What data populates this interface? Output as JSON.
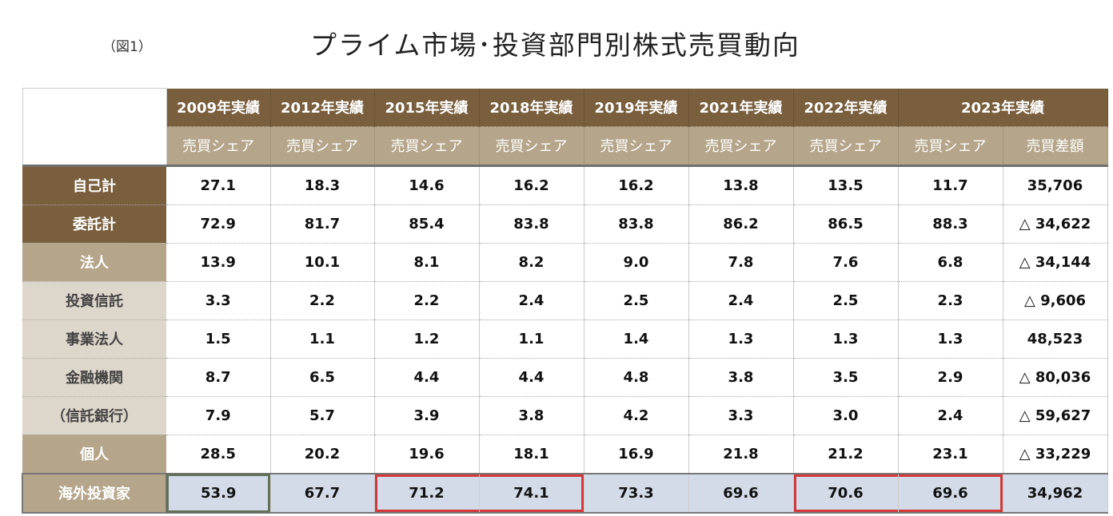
{
  "figure_label": "（図1）",
  "title": "プライム市場･投資部門別株式売買動向",
  "colors": {
    "header_dark": "#7a5f3e",
    "header_tan": "#b5a58a",
    "label_light": "#ddd6ca",
    "highlight_row": "#d3dbe9",
    "red_box": "#d23a3a",
    "green_box": "#62705a"
  },
  "columns": [
    "2009年実績",
    "2012年実績",
    "2015年実績",
    "2018年実績",
    "2019年実績",
    "2021年実績",
    "2022年実績",
    "2023年実績"
  ],
  "subheaders": [
    "売買シェア",
    "売買シェア",
    "売買シェア",
    "売買シェア",
    "売買シェア",
    "売買シェア",
    "売買シェア",
    "売買シェア",
    "売買差額"
  ],
  "rows": [
    {
      "label": "自己計",
      "values": [
        "27.1",
        "18.3",
        "14.6",
        "16.2",
        "16.2",
        "13.8",
        "13.5",
        "11.7",
        "35,706"
      ]
    },
    {
      "label": "委託計",
      "values": [
        "72.9",
        "81.7",
        "85.4",
        "83.8",
        "83.8",
        "86.2",
        "86.5",
        "88.3",
        "△ 34,622"
      ]
    },
    {
      "label": "法人",
      "values": [
        "13.9",
        "10.1",
        "8.1",
        "8.2",
        "9.0",
        "7.8",
        "7.6",
        "6.8",
        "△ 34,144"
      ]
    },
    {
      "label": "投資信託",
      "values": [
        "3.3",
        "2.2",
        "2.2",
        "2.4",
        "2.5",
        "2.4",
        "2.5",
        "2.3",
        "△ 9,606"
      ]
    },
    {
      "label": "事業法人",
      "values": [
        "1.5",
        "1.1",
        "1.2",
        "1.1",
        "1.4",
        "1.3",
        "1.3",
        "1.3",
        "48,523"
      ]
    },
    {
      "label": "金融機関",
      "values": [
        "8.7",
        "6.5",
        "4.4",
        "4.4",
        "4.8",
        "3.8",
        "3.5",
        "2.9",
        "△ 80,036"
      ]
    },
    {
      "label": "（信託銀行）",
      "values": [
        "7.9",
        "5.7",
        "3.9",
        "3.8",
        "4.2",
        "3.3",
        "3.0",
        "2.4",
        "△ 59,627"
      ]
    },
    {
      "label": "個人",
      "values": [
        "28.5",
        "20.2",
        "19.6",
        "18.1",
        "16.9",
        "21.8",
        "21.2",
        "23.1",
        "△ 33,229"
      ]
    },
    {
      "label": "海外投資家",
      "values": [
        "53.9",
        "67.7",
        "71.2",
        "74.1",
        "73.3",
        "69.6",
        "70.6",
        "69.6",
        "34,962"
      ]
    }
  ]
}
